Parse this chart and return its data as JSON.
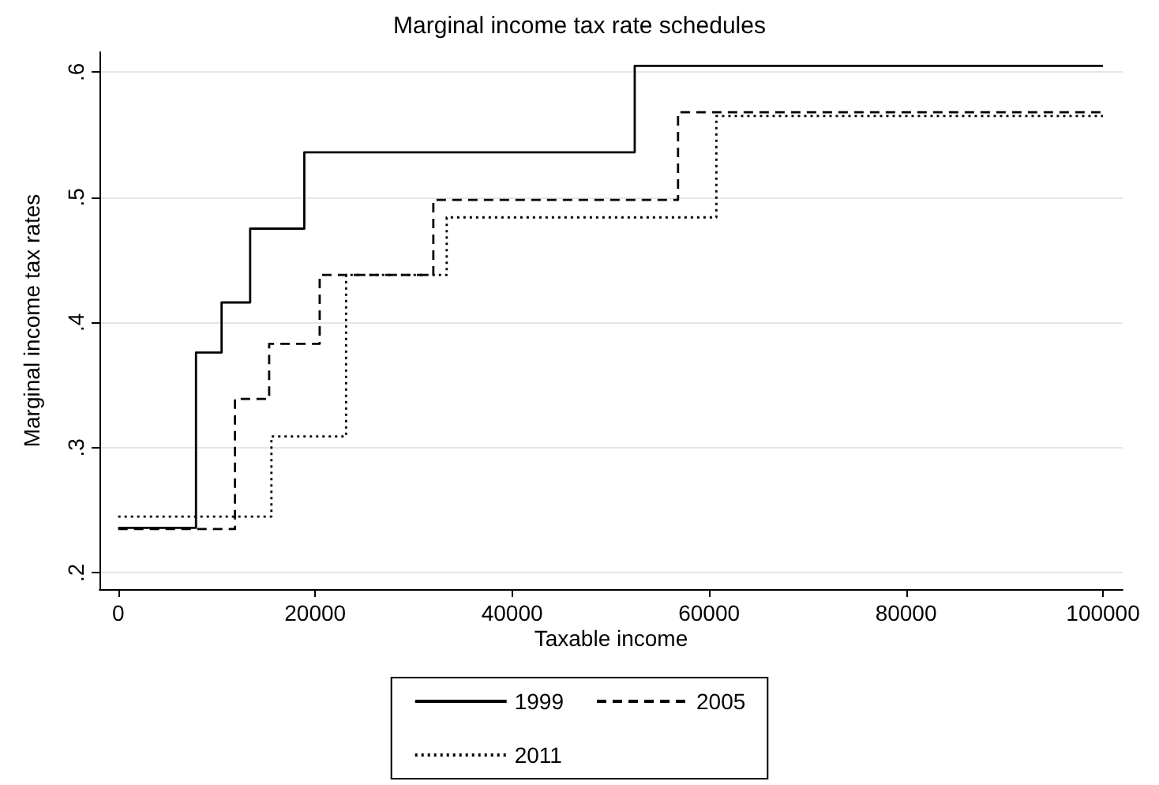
{
  "chart_data": {
    "type": "step",
    "title": "Marginal income tax rate schedules",
    "xlabel": "Taxable income",
    "ylabel": "Marginal income tax rates",
    "xlim": [
      -1900,
      102000
    ],
    "xticks": [
      0,
      20000,
      40000,
      60000,
      80000,
      100000
    ],
    "ylim": [
      0.187,
      0.616
    ],
    "yticks": [
      {
        "value": 0.2,
        "label": ".2"
      },
      {
        "value": 0.3,
        "label": ".3"
      },
      {
        "value": 0.4,
        "label": ".4"
      },
      {
        "value": 0.5,
        "label": ".5"
      },
      {
        "value": 0.6,
        "label": ".6"
      }
    ],
    "grid": "y",
    "legend": "bottom",
    "marker": "none",
    "series": [
      {
        "name": "1999",
        "color": "#000000",
        "line_style": "solid",
        "x": [
          0,
          7900,
          10500,
          13400,
          18900,
          52450,
          100000
        ],
        "values": [
          0.236,
          0.376,
          0.416,
          0.475,
          0.536,
          0.605,
          0.605
        ]
      },
      {
        "name": "2005",
        "color": "#000000",
        "line_style": "dashed",
        "x": [
          0,
          11860,
          15330,
          20460,
          32000,
          56850,
          100000
        ],
        "values": [
          0.235,
          0.339,
          0.383,
          0.438,
          0.498,
          0.568,
          0.568
        ]
      },
      {
        "name": "2011",
        "color": "#000000",
        "line_style": "dotted",
        "x": [
          0,
          15560,
          23140,
          33360,
          60740,
          100000
        ],
        "values": [
          0.245,
          0.309,
          0.438,
          0.484,
          0.565,
          0.565
        ]
      }
    ]
  }
}
